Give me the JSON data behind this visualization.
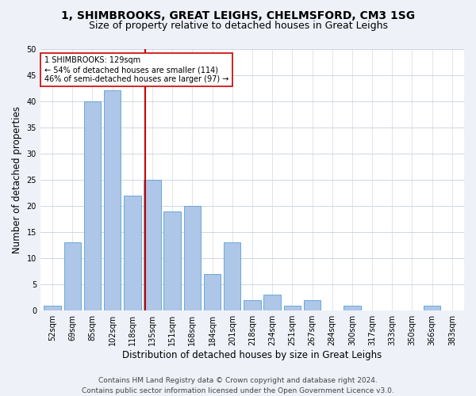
{
  "title_line1": "1, SHIMBROOKS, GREAT LEIGHS, CHELMSFORD, CM3 1SG",
  "title_line2": "Size of property relative to detached houses in Great Leighs",
  "xlabel": "Distribution of detached houses by size in Great Leighs",
  "ylabel": "Number of detached properties",
  "footer_line1": "Contains HM Land Registry data © Crown copyright and database right 2024.",
  "footer_line2": "Contains public sector information licensed under the Open Government Licence v3.0.",
  "categories": [
    "52sqm",
    "69sqm",
    "85sqm",
    "102sqm",
    "118sqm",
    "135sqm",
    "151sqm",
    "168sqm",
    "184sqm",
    "201sqm",
    "218sqm",
    "234sqm",
    "251sqm",
    "267sqm",
    "284sqm",
    "300sqm",
    "317sqm",
    "333sqm",
    "350sqm",
    "366sqm",
    "383sqm"
  ],
  "values": [
    1,
    13,
    40,
    42,
    22,
    25,
    19,
    20,
    7,
    13,
    2,
    3,
    1,
    2,
    0,
    1,
    0,
    0,
    0,
    1,
    0
  ],
  "bar_color": "#aec6e8",
  "bar_edge_color": "#5a9fd4",
  "vline_color": "#cc0000",
  "annotation_text": "1 SHIMBROOKS: 129sqm\n← 54% of detached houses are smaller (114)\n46% of semi-detached houses are larger (97) →",
  "annotation_box_color": "#ffffff",
  "annotation_box_edge": "#cc0000",
  "ylim": [
    0,
    50
  ],
  "yticks": [
    0,
    5,
    10,
    15,
    20,
    25,
    30,
    35,
    40,
    45,
    50
  ],
  "bg_color": "#eef2f8",
  "axes_bg_color": "#ffffff",
  "grid_color": "#c8d0de",
  "title_fontsize": 10,
  "subtitle_fontsize": 9,
  "axis_label_fontsize": 8.5,
  "tick_fontsize": 7,
  "annotation_fontsize": 7,
  "footer_fontsize": 6.5,
  "vline_pos": 4.647
}
